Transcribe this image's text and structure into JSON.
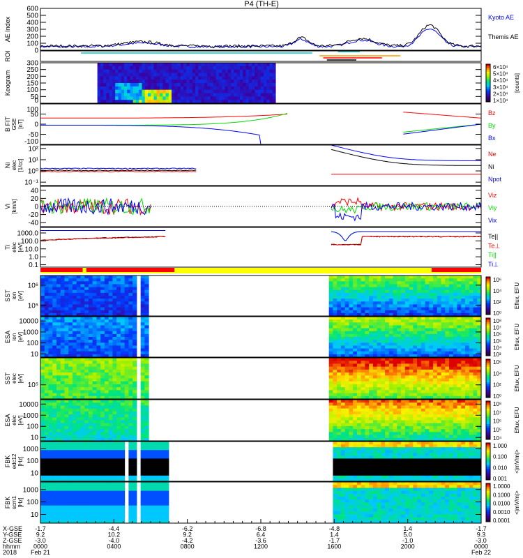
{
  "title": "P4 (TH-E)",
  "colors": {
    "red": "#ff0000",
    "green": "#00dd00",
    "blue": "#0000ff",
    "black": "#000000",
    "orange": "#ff9900",
    "cyan": "#00cccc"
  },
  "time_axis": {
    "range_hours": [
      0,
      24
    ],
    "rows": [
      {
        "label": "X-GSE",
        "values": [
          "-1.7",
          "-4.4",
          "-6.2",
          "-6.8",
          "-4.8",
          "1.4",
          "-1.7"
        ]
      },
      {
        "label": "Y-GSE",
        "values": [
          "9.2",
          "10.2",
          "9.2",
          "6.4",
          "1.4",
          "5.0",
          "9.3"
        ]
      },
      {
        "label": "Z-GSE",
        "values": [
          "-3.0",
          "-4.0",
          "-4.2",
          "-3.6",
          "-1.7",
          "-1.0",
          "-3.0"
        ]
      },
      {
        "label": "hhmm",
        "values": [
          "0000",
          "0400",
          "0800",
          "1200",
          "1600",
          "2000",
          "0000"
        ]
      },
      {
        "label": "2018",
        "values": [
          "Feb 21",
          "",
          "",
          "",
          "",
          "",
          "Feb 22"
        ]
      }
    ]
  },
  "chart_data": {
    "type": "line",
    "panels": [
      {
        "id": "ae",
        "ylabel": [
          "AE Index"
        ],
        "yrange": [
          0,
          600
        ],
        "ylog": false,
        "ticks": [
          "0",
          "100",
          "200",
          "300",
          "400",
          "500",
          "600"
        ],
        "tickvals": [
          0,
          100,
          200,
          300,
          400,
          500,
          600
        ],
        "legend": [
          {
            "name": "Kyoto AE",
            "color": "#0000ff"
          },
          {
            "name": "Themis AE",
            "color": "#000000"
          }
        ],
        "kind": "ae"
      },
      {
        "id": "roi",
        "ylabel": [
          "ROI"
        ],
        "kind": "roi",
        "ticks": [],
        "tickvals": []
      },
      {
        "id": "keogram",
        "ylabel": [
          "Keogram"
        ],
        "yrange": [
          0,
          300
        ],
        "ylog": false,
        "ticks": [
          "0",
          "50",
          "100",
          "150",
          "200",
          "250",
          "300"
        ],
        "tickvals": [
          0,
          50,
          100,
          150,
          200,
          250,
          300
        ],
        "colorbar": {
          "labels": [
            "6×10⁴",
            "5×10⁴",
            "4×10⁴",
            "3×10⁴",
            "2×10⁴",
            "1×10⁴"
          ],
          "unit": "[counts]"
        },
        "kind": "keogram",
        "coverage": [
          [
            3.1,
            12.8
          ]
        ]
      },
      {
        "id": "bfit",
        "ylabel": [
          "B FIT",
          "GSE",
          "[nT]"
        ],
        "yrange": [
          -100,
          100
        ],
        "ylog": false,
        "ticks": [
          "-100",
          "-50",
          "0",
          "50",
          "100"
        ],
        "tickvals": [
          -100,
          -50,
          0,
          50,
          100
        ],
        "legend": [
          {
            "name": "Bz",
            "color": "#ff0000"
          },
          {
            "name": "By",
            "color": "#00dd00"
          },
          {
            "name": "Bx",
            "color": "#0000ff"
          }
        ],
        "kind": "b"
      },
      {
        "id": "ni",
        "ylabel": [
          "Ni",
          "elec",
          "[1/cc]"
        ],
        "yrange": [
          0.05,
          200
        ],
        "ylog": true,
        "ticks": [
          "10²",
          "10¹",
          "10⁰",
          "10⁻¹"
        ],
        "tickvals": [
          100,
          10,
          1,
          0.1
        ],
        "legend": [
          {
            "name": "Ne",
            "color": "#ff0000"
          },
          {
            "name": "Ni",
            "color": "#000000"
          },
          {
            "name": "Npot",
            "color": "#0000ff"
          }
        ],
        "kind": "n"
      },
      {
        "id": "vi",
        "ylabel": [
          "Vi",
          "[km/s]"
        ],
        "yrange": [
          -50,
          50
        ],
        "ylog": false,
        "ticks": [
          "40",
          "20",
          "0",
          "-20",
          "-40"
        ],
        "tickvals": [
          40,
          20,
          0,
          -20,
          -40
        ],
        "legend": [
          {
            "name": "Viz",
            "color": "#ff0000"
          },
          {
            "name": "Viy",
            "color": "#00dd00"
          },
          {
            "name": "Vix",
            "color": "#0000ff"
          }
        ],
        "kind": "v"
      },
      {
        "id": "ti",
        "ylabel": [
          "Ti",
          "elec",
          "[eV]"
        ],
        "yrange": [
          0.05,
          5000
        ],
        "ylog": true,
        "ticks": [
          "1000.0",
          "100.0",
          "10.0",
          "1.0",
          "0.1"
        ],
        "tickvals": [
          1000,
          100,
          10,
          1,
          0.1
        ],
        "legend": [
          {
            "name": "Te||",
            "color": "#000000"
          },
          {
            "name": "Te⊥",
            "color": "#ff0000"
          },
          {
            "name": "Ti||",
            "color": "#00dd00"
          },
          {
            "name": "Ti⊥",
            "color": "#0000ff"
          }
        ],
        "kind": "t"
      },
      {
        "id": "mode",
        "ylabel": [],
        "kind": "mode",
        "ticks": [],
        "tickvals": []
      },
      {
        "id": "sst_ion",
        "ylabel": [
          "SST",
          "ion",
          "[eV]"
        ],
        "yrange": [
          30000,
          3000000
        ],
        "ylog": true,
        "ticks": [
          "10⁶",
          "10⁵"
        ],
        "tickvals": [
          1000000,
          100000
        ],
        "colorbar": {
          "labels": [
            "10⁶",
            "10⁴",
            "10²",
            "10⁰"
          ],
          "unit": "Eflux, EFU"
        },
        "kind": "spec",
        "base": 0.25,
        "coverage": [
          [
            0,
            5.3
          ],
          [
            5.5,
            5.6
          ],
          [
            5.7,
            5.9
          ],
          [
            15.8,
            24
          ]
        ]
      },
      {
        "id": "esa_ion",
        "ylabel": [
          "ESA",
          "ion",
          "[eV]"
        ],
        "yrange": [
          5,
          25000
        ],
        "ylog": true,
        "ticks": [
          "10000",
          "1000",
          "100",
          "10"
        ],
        "tickvals": [
          10000,
          1000,
          100,
          10
        ],
        "colorbar": {
          "labels": [
            "10⁸",
            "10⁷",
            "10⁶",
            "10⁵",
            "10⁴",
            "10³"
          ],
          "unit": "Eflux, EFU"
        },
        "kind": "spec",
        "base": 0.3,
        "coverage": [
          [
            0,
            5.3
          ],
          [
            5.5,
            5.6
          ],
          [
            5.7,
            6.0
          ],
          [
            15.8,
            24
          ]
        ]
      },
      {
        "id": "sst_elec",
        "ylabel": [
          "SST",
          "elec",
          "[eV]"
        ],
        "yrange": [
          30000,
          1000000
        ],
        "ylog": true,
        "ticks": [
          "10⁵"
        ],
        "tickvals": [
          100000
        ],
        "colorbar": {
          "labels": [
            "10⁶",
            "10⁴",
            "10²",
            "10⁰"
          ],
          "unit": "Eflux, EFU"
        },
        "kind": "spec",
        "base": 0.6,
        "coverage": [
          [
            0,
            5.3
          ],
          [
            5.5,
            5.6
          ],
          [
            5.7,
            6.0
          ],
          [
            15.8,
            24
          ]
        ]
      },
      {
        "id": "esa_elec",
        "ylabel": [
          "ESA",
          "elec",
          "[eV]"
        ],
        "yrange": [
          5,
          25000
        ],
        "ylog": true,
        "ticks": [
          "10000",
          "1000",
          "100",
          "10"
        ],
        "tickvals": [
          10000,
          1000,
          100,
          10
        ],
        "colorbar": {
          "labels": [
            "10⁸",
            "10⁷",
            "10⁶",
            "10⁵",
            "10⁴"
          ],
          "unit": "Eflux, EFU"
        },
        "kind": "spec",
        "base": 0.5,
        "coverage": [
          [
            0,
            5.3
          ],
          [
            5.5,
            5.6
          ],
          [
            5.7,
            5.9
          ],
          [
            15.8,
            24
          ]
        ]
      },
      {
        "id": "fbk_edc12",
        "ylabel": [
          "FBK",
          "edc12",
          "[Hz]"
        ],
        "yrange": [
          2,
          4000
        ],
        "ylog": true,
        "ticks": [
          "1000",
          "100",
          "10"
        ],
        "tickvals": [
          1000,
          100,
          10
        ],
        "colorbar": {
          "labels": [
            "1.000",
            "0.100",
            "0.010",
            "0.001"
          ],
          "unit": "<|mV/m|>"
        },
        "kind": "fbk",
        "coverage": [
          [
            0,
            4.5
          ],
          [
            4.7,
            5.2
          ],
          [
            5.35,
            5.6
          ],
          [
            5.75,
            6.9
          ],
          [
            15.9,
            24
          ]
        ]
      },
      {
        "id": "fbk_scm1",
        "ylabel": [
          "FBK",
          "scm1",
          "[Hz]"
        ],
        "yrange": [
          2,
          4000
        ],
        "ylog": true,
        "ticks": [
          "1000",
          "100",
          "10"
        ],
        "tickvals": [
          1000,
          100,
          10
        ],
        "colorbar": {
          "labels": [
            "1.0000",
            "0.1000",
            "0.0100",
            "0.0010",
            "0.0001"
          ],
          "unit": "<|mV/m|>"
        },
        "kind": "fbk",
        "coverage": [
          [
            0,
            4.5
          ],
          [
            4.7,
            5.2
          ],
          [
            5.35,
            5.6
          ],
          [
            5.75,
            6.9
          ],
          [
            15.9,
            24
          ]
        ]
      }
    ]
  }
}
